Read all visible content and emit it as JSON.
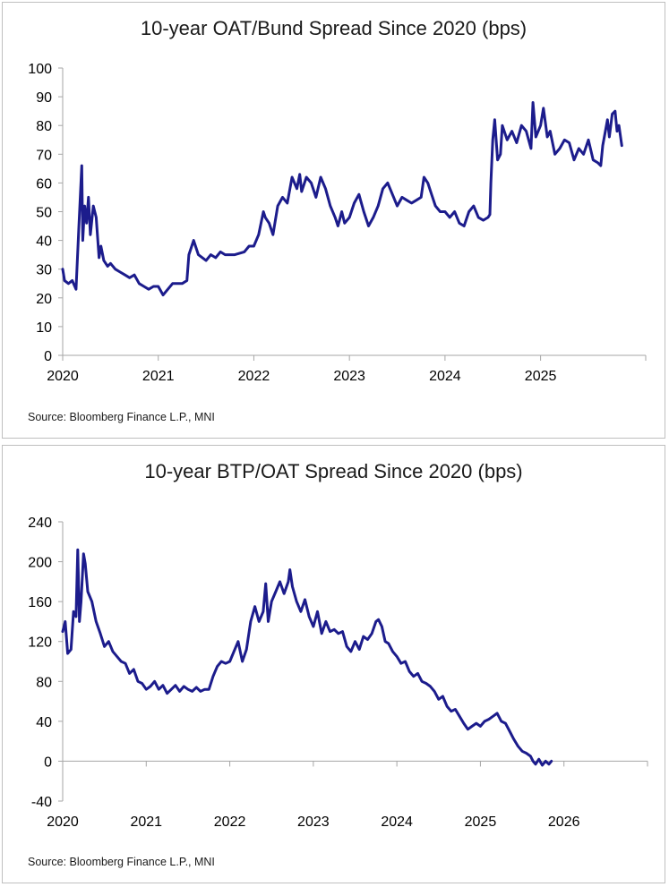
{
  "chart_data": [
    {
      "type": "line",
      "title": "10-year OAT/Bund Spread Since 2020 (bps)",
      "source": "Source: Bloomberg Finance L.P., MNI",
      "xlabel": "",
      "ylabel": "",
      "xlim": [
        2020,
        2026.1
      ],
      "ylim": [
        0,
        100
      ],
      "yticks": [
        0,
        10,
        20,
        30,
        40,
        50,
        60,
        70,
        80,
        90,
        100
      ],
      "xticks": [
        2020,
        2021,
        2022,
        2023,
        2024,
        2025
      ],
      "grid": false,
      "legend": "none",
      "color": "#1c1c8c",
      "series": [
        {
          "x": [
            2020.0,
            2020.02,
            2020.06,
            2020.1,
            2020.14,
            2020.17,
            2020.2,
            2020.21,
            2020.23,
            2020.25,
            2020.27,
            2020.29,
            2020.32,
            2020.35,
            2020.38,
            2020.4,
            2020.43,
            2020.47,
            2020.5,
            2020.55,
            2020.6,
            2020.65,
            2020.7,
            2020.75,
            2020.8,
            2020.85,
            2020.9,
            2020.95,
            2021.0,
            2021.05,
            2021.1,
            2021.15,
            2021.2,
            2021.25,
            2021.3,
            2021.32,
            2021.37,
            2021.42,
            2021.5,
            2021.55,
            2021.6,
            2021.65,
            2021.7,
            2021.8,
            2021.9,
            2021.95,
            2022.0,
            2022.05,
            2022.1,
            2022.12,
            2022.16,
            2022.2,
            2022.25,
            2022.3,
            2022.35,
            2022.4,
            2022.45,
            2022.48,
            2022.5,
            2022.55,
            2022.6,
            2022.65,
            2022.7,
            2022.75,
            2022.8,
            2022.85,
            2022.88,
            2022.92,
            2022.95,
            2023.0,
            2023.05,
            2023.1,
            2023.15,
            2023.2,
            2023.25,
            2023.3,
            2023.35,
            2023.4,
            2023.45,
            2023.5,
            2023.55,
            2023.6,
            2023.65,
            2023.7,
            2023.75,
            2023.78,
            2023.82,
            2023.86,
            2023.9,
            2023.95,
            2024.0,
            2024.05,
            2024.1,
            2024.15,
            2024.2,
            2024.25,
            2024.3,
            2024.35,
            2024.4,
            2024.45,
            2024.47,
            2024.48,
            2024.5,
            2024.52,
            2024.55,
            2024.58,
            2024.6,
            2024.65,
            2024.7,
            2024.75,
            2024.8,
            2024.85,
            2024.9,
            2024.92,
            2024.95,
            2025.0,
            2025.03,
            2025.07,
            2025.1,
            2025.15,
            2025.2,
            2025.25,
            2025.3,
            2025.35,
            2025.4,
            2025.45,
            2025.5,
            2025.55,
            2025.6,
            2025.63,
            2025.65,
            2025.7,
            2025.72,
            2025.75,
            2025.78,
            2025.8,
            2025.82,
            2025.85
          ],
          "y": [
            30,
            26,
            25,
            26,
            23,
            45,
            66,
            40,
            52,
            46,
            55,
            42,
            52,
            48,
            34,
            38,
            33,
            31,
            32,
            30,
            29,
            28,
            27,
            28,
            25,
            24,
            23,
            24,
            24,
            21,
            23,
            25,
            25,
            25,
            26,
            35,
            40,
            35,
            33,
            35,
            34,
            36,
            35,
            35,
            36,
            38,
            38,
            42,
            50,
            48,
            46,
            42,
            52,
            55,
            53,
            62,
            58,
            63,
            57,
            62,
            60,
            55,
            62,
            58,
            52,
            48,
            45,
            50,
            46,
            48,
            53,
            56,
            50,
            45,
            48,
            52,
            58,
            60,
            56,
            52,
            55,
            54,
            53,
            54,
            55,
            62,
            60,
            56,
            52,
            50,
            50,
            48,
            50,
            46,
            45,
            50,
            52,
            48,
            47,
            48,
            49,
            60,
            75,
            82,
            68,
            70,
            80,
            75,
            78,
            74,
            80,
            78,
            72,
            88,
            76,
            80,
            86,
            76,
            78,
            70,
            72,
            75,
            74,
            68,
            72,
            70,
            75,
            68,
            67,
            66,
            73,
            82,
            76,
            84,
            85,
            78,
            80,
            73
          ]
        }
      ]
    },
    {
      "type": "line",
      "title": "10-year BTP/OAT Spread Since 2020 (bps)",
      "source": "Source: Bloomberg Finance L.P., MNI",
      "xlabel": "",
      "ylabel": "",
      "xlim": [
        2020,
        2027.0
      ],
      "ylim": [
        -40,
        240
      ],
      "yticks": [
        -40,
        0,
        40,
        80,
        120,
        160,
        200,
        240
      ],
      "xticks": [
        2020,
        2021,
        2022,
        2023,
        2024,
        2025,
        2026
      ],
      "grid": false,
      "legend": "none",
      "color": "#1c1c8c",
      "series": [
        {
          "x": [
            2020.0,
            2020.03,
            2020.06,
            2020.1,
            2020.13,
            2020.16,
            2020.18,
            2020.2,
            2020.22,
            2020.25,
            2020.27,
            2020.3,
            2020.35,
            2020.4,
            2020.45,
            2020.5,
            2020.55,
            2020.6,
            2020.65,
            2020.7,
            2020.75,
            2020.8,
            2020.85,
            2020.9,
            2020.95,
            2021.0,
            2021.05,
            2021.1,
            2021.15,
            2021.2,
            2021.25,
            2021.3,
            2021.35,
            2021.4,
            2021.45,
            2021.5,
            2021.55,
            2021.6,
            2021.65,
            2021.7,
            2021.75,
            2021.8,
            2021.85,
            2021.9,
            2021.95,
            2022.0,
            2022.05,
            2022.1,
            2022.15,
            2022.2,
            2022.25,
            2022.3,
            2022.35,
            2022.4,
            2022.43,
            2022.46,
            2022.5,
            2022.55,
            2022.6,
            2022.65,
            2022.7,
            2022.72,
            2022.75,
            2022.8,
            2022.85,
            2022.9,
            2022.95,
            2023.0,
            2023.05,
            2023.1,
            2023.15,
            2023.2,
            2023.25,
            2023.3,
            2023.35,
            2023.4,
            2023.45,
            2023.5,
            2023.55,
            2023.6,
            2023.65,
            2023.7,
            2023.75,
            2023.78,
            2023.82,
            2023.86,
            2023.9,
            2023.95,
            2024.0,
            2024.05,
            2024.1,
            2024.15,
            2024.2,
            2024.25,
            2024.3,
            2024.35,
            2024.4,
            2024.45,
            2024.5,
            2024.55,
            2024.6,
            2024.65,
            2024.7,
            2024.75,
            2024.8,
            2024.85,
            2024.9,
            2024.95,
            2025.0,
            2025.05,
            2025.1,
            2025.15,
            2025.2,
            2025.25,
            2025.3,
            2025.35,
            2025.4,
            2025.45,
            2025.5,
            2025.55,
            2025.6,
            2025.63,
            2025.66,
            2025.7,
            2025.74,
            2025.78,
            2025.82,
            2025.85
          ],
          "y": [
            130,
            140,
            108,
            112,
            150,
            145,
            212,
            140,
            160,
            208,
            198,
            170,
            160,
            140,
            128,
            115,
            120,
            110,
            105,
            100,
            98,
            88,
            92,
            80,
            78,
            72,
            75,
            80,
            72,
            76,
            68,
            72,
            76,
            70,
            75,
            72,
            70,
            74,
            70,
            72,
            72,
            85,
            95,
            100,
            98,
            100,
            110,
            120,
            100,
            112,
            140,
            155,
            140,
            150,
            178,
            140,
            160,
            170,
            180,
            168,
            180,
            192,
            175,
            160,
            150,
            162,
            145,
            135,
            150,
            128,
            140,
            130,
            132,
            128,
            130,
            115,
            110,
            120,
            112,
            125,
            122,
            128,
            140,
            142,
            135,
            120,
            118,
            110,
            105,
            98,
            100,
            90,
            85,
            88,
            80,
            78,
            75,
            70,
            62,
            65,
            55,
            50,
            52,
            45,
            38,
            32,
            35,
            38,
            35,
            40,
            42,
            45,
            48,
            40,
            38,
            30,
            22,
            15,
            10,
            8,
            5,
            0,
            -3,
            2,
            -4,
            0,
            -3,
            0
          ]
        }
      ]
    }
  ]
}
